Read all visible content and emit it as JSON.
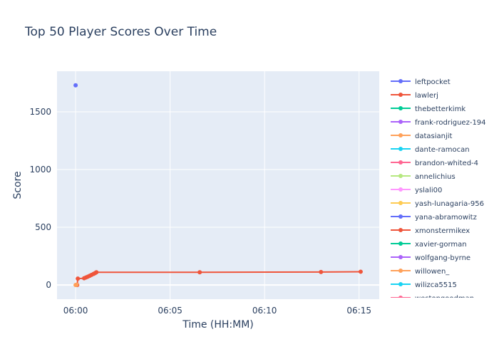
{
  "chart_data": {
    "type": "line",
    "title": "Top 50 Player Scores Over Time",
    "x_label": "Time (HH:MM)",
    "y_label": "Score",
    "xlim": [
      "05:59:01",
      "06:16:04"
    ],
    "xticks": [
      "06:00",
      "06:05",
      "06:10",
      "06:15"
    ],
    "ylim": [
      -123,
      1852
    ],
    "yticks": [
      0,
      500,
      1000,
      1500
    ],
    "grid": true,
    "series": [
      {
        "name": "leftpocket",
        "color": "#636efa",
        "x": [
          "06:00:00"
        ],
        "values": [
          1730
        ]
      },
      {
        "name": "lawlerj",
        "color": "#EF553B",
        "x": [
          "06:00:05",
          "06:00:07",
          "06:00:27",
          "06:00:33",
          "06:00:39",
          "06:00:45",
          "06:00:51",
          "06:00:57",
          "06:01:02",
          "06:01:06",
          "06:06:34",
          "06:12:59",
          "06:15:05"
        ],
        "values": [
          0,
          55,
          58,
          65,
          72,
          80,
          88,
          96,
          103,
          110,
          110,
          112,
          115
        ]
      },
      {
        "name": "thebetterkimk",
        "color": "#00cc96",
        "x": [],
        "values": []
      },
      {
        "name": "frank-rodriguez-194",
        "color": "#ab63fa",
        "x": [],
        "values": []
      },
      {
        "name": "datasianjit",
        "color": "#FFA15A",
        "x": [
          "06:00:00",
          "06:00:03"
        ],
        "values": [
          0,
          2
        ]
      },
      {
        "name": "dante-ramocan",
        "color": "#19d3f3",
        "x": [],
        "values": []
      },
      {
        "name": "brandon-whited-4",
        "color": "#FF6692",
        "x": [],
        "values": []
      },
      {
        "name": "annelichius",
        "color": "#B6E880",
        "x": [],
        "values": []
      },
      {
        "name": "yslali00",
        "color": "#FF97FF",
        "x": [],
        "values": []
      },
      {
        "name": "yash-lunagaria-956",
        "color": "#FECB52",
        "x": [],
        "values": []
      },
      {
        "name": "yana-abramowitz",
        "color": "#636efa",
        "x": [],
        "values": []
      },
      {
        "name": "xmonstermikex",
        "color": "#EF553B",
        "x": [],
        "values": []
      },
      {
        "name": "xavier-gorman",
        "color": "#00cc96",
        "x": [],
        "values": []
      },
      {
        "name": "wolfgang-byrne",
        "color": "#ab63fa",
        "x": [],
        "values": []
      },
      {
        "name": "willowen_",
        "color": "#FFA15A",
        "x": [],
        "values": []
      },
      {
        "name": "wilizca5515",
        "color": "#19d3f3",
        "x": [],
        "values": []
      },
      {
        "name": "westongoodman",
        "color": "#FF6692",
        "x": [],
        "values": []
      }
    ]
  }
}
